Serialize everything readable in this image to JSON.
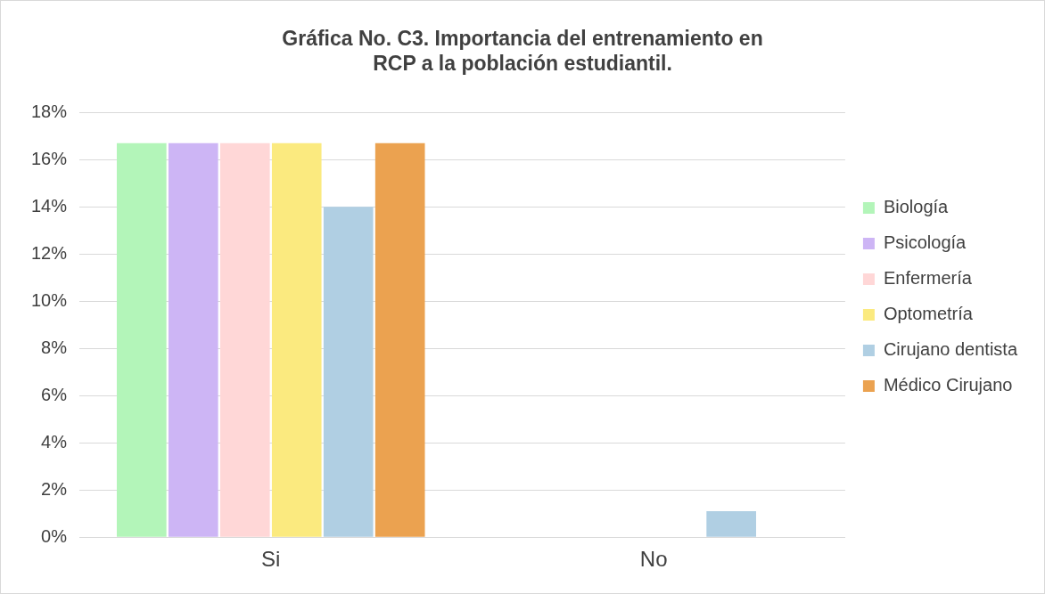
{
  "chart_data": {
    "type": "bar",
    "title": "Gráfica No. C3. Importancia del entrenamiento en RCP a la población estudiantil.",
    "categories": [
      "Si",
      "No"
    ],
    "series": [
      {
        "name": "Biología",
        "color": "#b3f5b9",
        "values": [
          16.7,
          0
        ]
      },
      {
        "name": "Psicología",
        "color": "#cdb5f5",
        "values": [
          16.7,
          0
        ]
      },
      {
        "name": "Enfermería",
        "color": "#ffd7d7",
        "values": [
          16.7,
          0
        ]
      },
      {
        "name": "Optometría",
        "color": "#fbea7f",
        "values": [
          16.7,
          0
        ]
      },
      {
        "name": "Cirujano dentista",
        "color": "#b0cfe3",
        "values": [
          14,
          1.1
        ]
      },
      {
        "name": "Médico Cirujano",
        "color": "#eba250",
        "values": [
          16.7,
          0
        ]
      }
    ],
    "ylim": [
      0,
      18
    ],
    "yticks": [
      {
        "value": 0,
        "label": "0%"
      },
      {
        "value": 2,
        "label": "2%"
      },
      {
        "value": 4,
        "label": "4%"
      },
      {
        "value": 6,
        "label": "6%"
      },
      {
        "value": 8,
        "label": "8%"
      },
      {
        "value": 10,
        "label": "10%"
      },
      {
        "value": 12,
        "label": "12%"
      },
      {
        "value": 14,
        "label": "14%"
      },
      {
        "value": 16,
        "label": "16%"
      },
      {
        "value": 18,
        "label": "18%"
      }
    ],
    "grid": "y",
    "legend": "right"
  }
}
